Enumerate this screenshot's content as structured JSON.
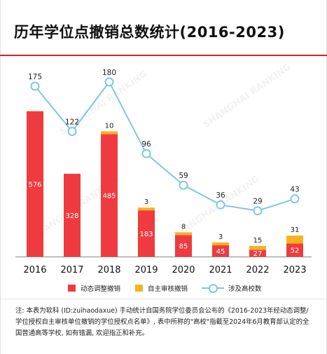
{
  "title": "历年学位点撤销总数统计(2016-2023)",
  "watermark": "SHANGHAI RANKING",
  "note": "注: 本表为软科 (ID:zuihaodaxue) 手动统计自国务院学位委员会公布的《2016-2023年经动态调整/学位授权自主审核单位撤销的学位授权点名单》, 表中所称的\"高校\"指截至2024年6月教育部认定的全国普通高等学校, 如有错漏, 欢迎指正和补充。",
  "colors": {
    "dynamic": "#ef3b3f",
    "self": "#f6b21d",
    "line": "#7ec7e3",
    "rule": "#d9232d"
  },
  "chart_data": {
    "type": "bar",
    "title": "历年学位点撤销总数统计(2016-2023)",
    "categories": [
      "2016",
      "2017",
      "2018",
      "2019",
      "2020",
      "2021",
      "2022",
      "2023"
    ],
    "series": [
      {
        "name": "动态调整撤销",
        "type": "bar",
        "stack": "revoked",
        "values": [
          576,
          328,
          485,
          183,
          85,
          45,
          27,
          52
        ]
      },
      {
        "name": "自主审核撤销",
        "type": "bar",
        "stack": "revoked",
        "values": [
          0,
          0,
          10,
          3,
          8,
          3,
          15,
          31
        ]
      },
      {
        "name": "涉及高校数",
        "type": "line",
        "values": [
          175,
          122,
          180,
          96,
          59,
          36,
          29,
          43
        ]
      }
    ],
    "legend_placement": "bottom",
    "grid": false
  }
}
